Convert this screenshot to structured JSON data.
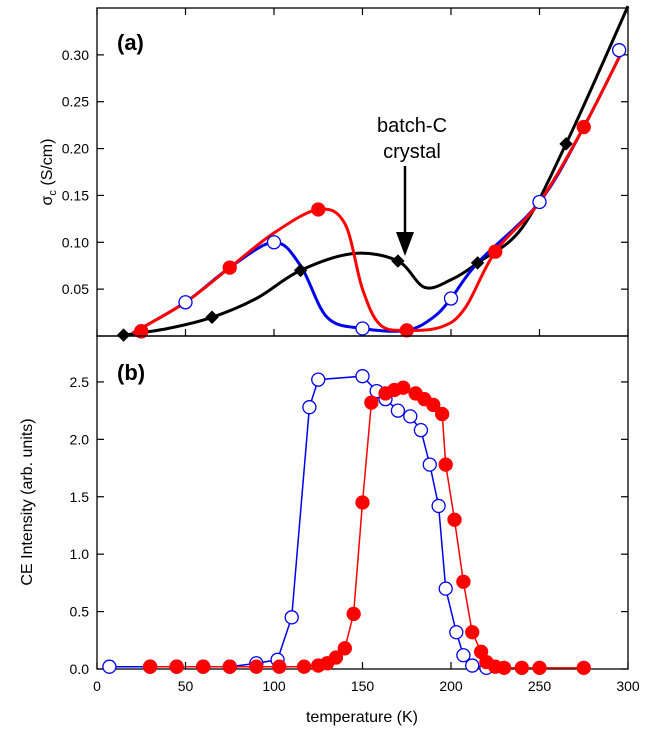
{
  "chart_data": [
    {
      "id": "a",
      "type": "line",
      "panel_label": "(a)",
      "ylabel": "σ_c (S/cm)",
      "xlabel": "",
      "xlim": [
        0,
        300
      ],
      "ylim": [
        0,
        0.35
      ],
      "yticks": [
        0.05,
        0.1,
        0.15,
        0.2,
        0.25,
        0.3
      ],
      "ytick_labels": [
        "0.05",
        "0.10",
        "0.15",
        "0.20",
        "0.25",
        "0.30"
      ],
      "grid": false,
      "annotation": {
        "lines": [
          "batch-C",
          "crystal"
        ],
        "points_to": [
          170,
          0.08
        ]
      },
      "series": [
        {
          "color": "#000000",
          "marker": "diamond",
          "fill": "#000000",
          "curve": [
            [
              15,
              0.001
            ],
            [
              40,
              0.008
            ],
            [
              65,
              0.02
            ],
            [
              90,
              0.04
            ],
            [
              115,
              0.07
            ],
            [
              145,
              0.088
            ],
            [
              170,
              0.08
            ],
            [
              185,
              0.052
            ],
            [
              200,
              0.06
            ],
            [
              215,
              0.078
            ],
            [
              240,
              0.115
            ],
            [
              265,
              0.205
            ],
            [
              300,
              0.352
            ]
          ],
          "markers": [
            [
              15,
              0.001
            ],
            [
              65,
              0.02
            ],
            [
              115,
              0.07
            ],
            [
              170,
              0.08
            ],
            [
              215,
              0.078
            ],
            [
              265,
              0.205
            ]
          ]
        },
        {
          "color": "#0000ee",
          "marker": "circle",
          "fill": "#ffffff",
          "curve": [
            [
              20,
              0.003
            ],
            [
              50,
              0.036
            ],
            [
              75,
              0.073
            ],
            [
              100,
              0.1
            ],
            [
              115,
              0.075
            ],
            [
              130,
              0.02
            ],
            [
              150,
              0.008
            ],
            [
              175,
              0.006
            ],
            [
              190,
              0.02
            ],
            [
              200,
              0.04
            ],
            [
              215,
              0.078
            ],
            [
              250,
              0.143
            ],
            [
              275,
              0.223
            ],
            [
              297,
              0.305
            ]
          ],
          "markers": [
            [
              25,
              0.005
            ],
            [
              50,
              0.036
            ],
            [
              100,
              0.1
            ],
            [
              150,
              0.008
            ],
            [
              200,
              0.04
            ],
            [
              250,
              0.143
            ],
            [
              295,
              0.305
            ]
          ]
        },
        {
          "color": "#ff0000",
          "marker": "circle",
          "fill": "#ff0000",
          "curve": [
            [
              20,
              0.003
            ],
            [
              50,
              0.036
            ],
            [
              75,
              0.073
            ],
            [
              100,
              0.11
            ],
            [
              125,
              0.135
            ],
            [
              140,
              0.12
            ],
            [
              150,
              0.05
            ],
            [
              160,
              0.012
            ],
            [
              175,
              0.006
            ],
            [
              195,
              0.01
            ],
            [
              208,
              0.03
            ],
            [
              225,
              0.09
            ],
            [
              250,
              0.143
            ],
            [
              275,
              0.223
            ],
            [
              297,
              0.305
            ]
          ],
          "markers": [
            [
              25,
              0.005
            ],
            [
              75,
              0.073
            ],
            [
              125,
              0.135
            ],
            [
              175,
              0.006
            ],
            [
              225,
              0.09
            ],
            [
              275,
              0.223
            ]
          ]
        }
      ]
    },
    {
      "id": "b",
      "type": "line",
      "panel_label": "(b)",
      "ylabel": "CE Intensity (arb. units)",
      "xlabel": "temperature (K)",
      "xlim": [
        0,
        300
      ],
      "ylim": [
        0,
        2.9
      ],
      "yticks": [
        0.0,
        0.5,
        1.0,
        1.5,
        2.0,
        2.5
      ],
      "ytick_labels": [
        "0.0",
        "0.5",
        "1.0",
        "1.5",
        "2.0",
        "2.5"
      ],
      "xticks": [
        0,
        50,
        100,
        150,
        200,
        250,
        300
      ],
      "xtick_labels": [
        "0",
        "50",
        "100",
        "150",
        "200",
        "250",
        "300"
      ],
      "grid": false,
      "series": [
        {
          "color": "#0000ee",
          "marker": "circle",
          "fill": "#ffffff",
          "points": [
            [
              7,
              0.02
            ],
            [
              30,
              0.02
            ],
            [
              45,
              0.02
            ],
            [
              60,
              0.02
            ],
            [
              75,
              0.02
            ],
            [
              90,
              0.05
            ],
            [
              102,
              0.08
            ],
            [
              110,
              0.45
            ],
            [
              120,
              2.28
            ],
            [
              125,
              2.52
            ],
            [
              150,
              2.55
            ],
            [
              158,
              2.42
            ],
            [
              163,
              2.35
            ],
            [
              170,
              2.25
            ],
            [
              177,
              2.2
            ],
            [
              183,
              2.08
            ],
            [
              188,
              1.78
            ],
            [
              193,
              1.42
            ],
            [
              197,
              0.7
            ],
            [
              203,
              0.32
            ],
            [
              207,
              0.12
            ],
            [
              212,
              0.03
            ],
            [
              220,
              0.01
            ]
          ]
        },
        {
          "color": "#ff0000",
          "marker": "circle",
          "fill": "#ff0000",
          "points": [
            [
              30,
              0.02
            ],
            [
              45,
              0.02
            ],
            [
              60,
              0.02
            ],
            [
              75,
              0.02
            ],
            [
              90,
              0.02
            ],
            [
              103,
              0.02
            ],
            [
              117,
              0.02
            ],
            [
              125,
              0.03
            ],
            [
              130,
              0.05
            ],
            [
              135,
              0.1
            ],
            [
              140,
              0.18
            ],
            [
              145,
              0.48
            ],
            [
              150,
              1.45
            ],
            [
              155,
              2.32
            ],
            [
              163,
              2.4
            ],
            [
              168,
              2.43
            ],
            [
              173,
              2.45
            ],
            [
              180,
              2.4
            ],
            [
              185,
              2.35
            ],
            [
              190,
              2.3
            ],
            [
              195,
              2.22
            ],
            [
              197,
              1.78
            ],
            [
              202,
              1.3
            ],
            [
              207,
              0.76
            ],
            [
              212,
              0.32
            ],
            [
              217,
              0.15
            ],
            [
              220,
              0.06
            ],
            [
              225,
              0.02
            ],
            [
              230,
              0.01
            ],
            [
              240,
              0.01
            ],
            [
              250,
              0.01
            ],
            [
              275,
              0.01
            ]
          ]
        }
      ]
    }
  ]
}
